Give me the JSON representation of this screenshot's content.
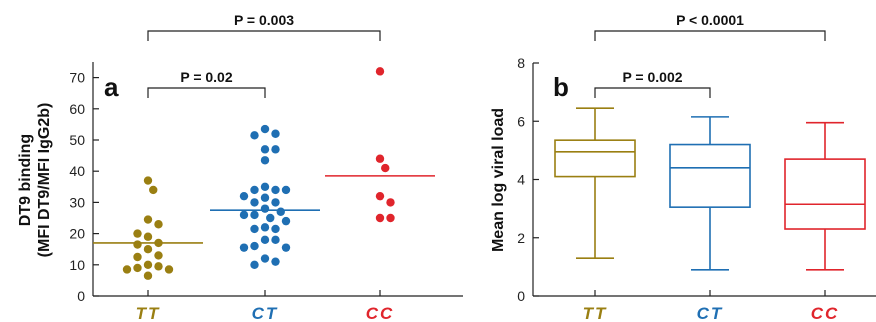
{
  "colors": {
    "TT": "#9a7f12",
    "CT": "#1f6fb3",
    "CC": "#e0252c",
    "axis": "#222222"
  },
  "chart_data": [
    {
      "type": "scatter",
      "panel_label": "a",
      "ylabel_line1": "DT9 binding",
      "ylabel_line2": "(MFI DT9/MFI IgG2b)",
      "ylim": [
        0,
        75
      ],
      "yticks": [
        0,
        10,
        20,
        30,
        40,
        50,
        60,
        70
      ],
      "categories": [
        "TT",
        "CT",
        "CC"
      ],
      "series": [
        {
          "name": "TT",
          "mean": 17,
          "values": [
            37,
            34,
            24.5,
            23,
            19,
            20,
            17,
            16.5,
            15,
            13,
            12.5,
            10,
            9.5,
            9,
            8.5,
            8.5,
            6.5
          ]
        },
        {
          "name": "CT",
          "mean": 27.5,
          "values": [
            53.5,
            52,
            51.5,
            47,
            47,
            43.5,
            35,
            34,
            34,
            34,
            32,
            31.5,
            30,
            30,
            28,
            27,
            26,
            26,
            25,
            24,
            22,
            21.5,
            21.5,
            18,
            18,
            16,
            15.5,
            15.5,
            12,
            11,
            10
          ]
        },
        {
          "name": "CC",
          "mean": 38.5,
          "values": [
            72,
            44,
            41,
            32,
            30,
            25,
            25
          ]
        }
      ],
      "comparisons": [
        {
          "from": "TT",
          "to": "CT",
          "label": "P = 0.02"
        },
        {
          "from": "TT",
          "to": "CC",
          "label": "P = 0.003"
        }
      ]
    },
    {
      "type": "boxplot",
      "panel_label": "b",
      "ylabel": "Mean log viral load",
      "ylim": [
        0,
        8
      ],
      "yticks": [
        0,
        2,
        4,
        6,
        8
      ],
      "categories": [
        "TT",
        "CT",
        "CC"
      ],
      "series": [
        {
          "name": "TT",
          "min": 1.3,
          "q1": 4.1,
          "median": 4.95,
          "q3": 5.35,
          "max": 6.45
        },
        {
          "name": "CT",
          "min": 0.9,
          "q1": 3.05,
          "median": 4.4,
          "q3": 5.2,
          "max": 6.15
        },
        {
          "name": "CC",
          "min": 0.9,
          "q1": 2.3,
          "median": 3.15,
          "q3": 4.7,
          "max": 5.95
        }
      ],
      "comparisons": [
        {
          "from": "TT",
          "to": "CT",
          "label": "P = 0.002"
        },
        {
          "from": "TT",
          "to": "CC",
          "label": "P < 0.0001"
        }
      ]
    }
  ]
}
